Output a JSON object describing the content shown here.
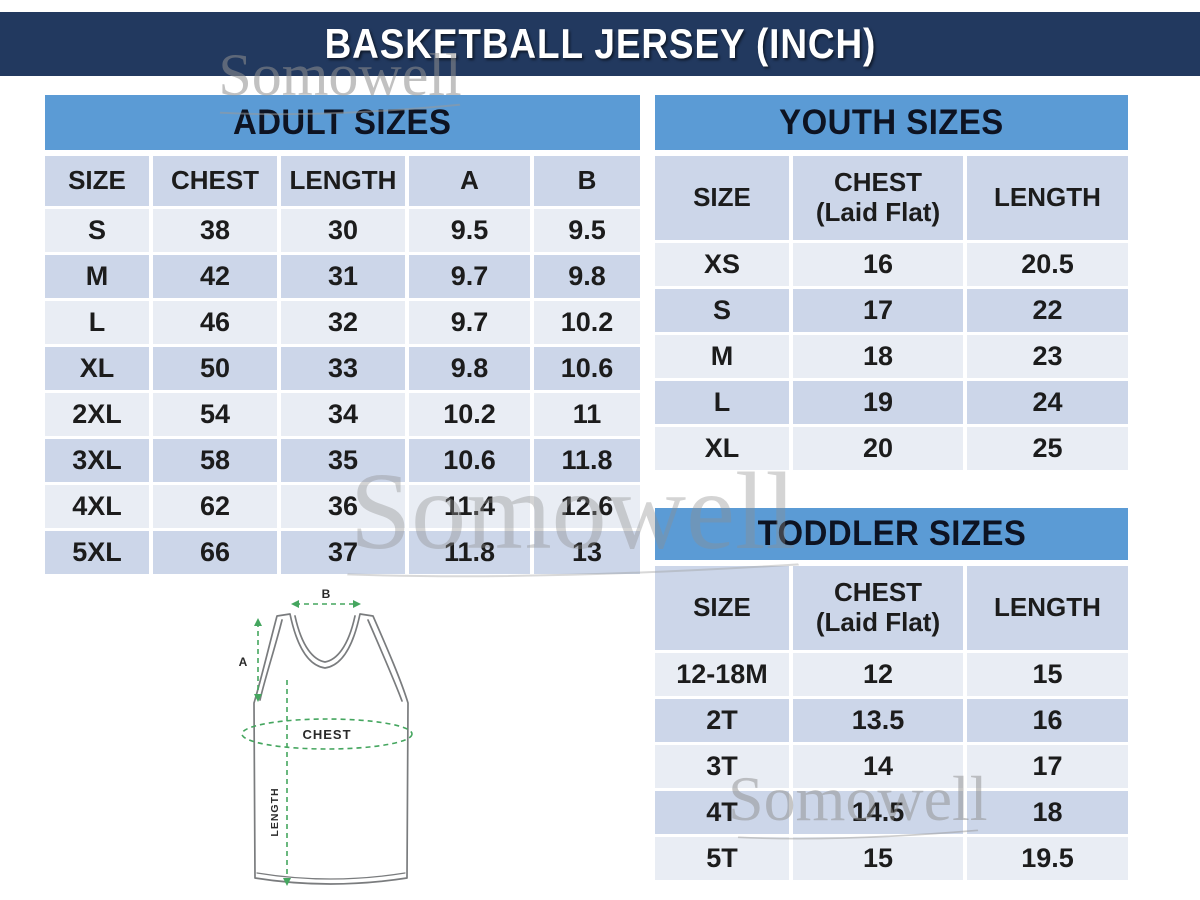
{
  "title": "BASKETBALL JERSEY (INCH)",
  "watermark": {
    "text": "Somowell"
  },
  "colors": {
    "navy": "#22395f",
    "header_blue": "#5b9bd5",
    "row_dark": "#ccd6e9",
    "row_light": "#e9edf4",
    "text": "#1c1c1c",
    "diagram_green": "#45a65f",
    "diagram_outline": "#7a7c7e"
  },
  "tables": {
    "adult": {
      "title": "ADULT SIZES",
      "columns": [
        {
          "label": "SIZE"
        },
        {
          "label": "CHEST"
        },
        {
          "label": "LENGTH"
        },
        {
          "label": "A"
        },
        {
          "label": "B"
        }
      ],
      "rows": [
        [
          "S",
          "38",
          "30",
          "9.5",
          "9.5"
        ],
        [
          "M",
          "42",
          "31",
          "9.7",
          "9.8"
        ],
        [
          "L",
          "46",
          "32",
          "9.7",
          "10.2"
        ],
        [
          "XL",
          "50",
          "33",
          "9.8",
          "10.6"
        ],
        [
          "2XL",
          "54",
          "34",
          "10.2",
          "11"
        ],
        [
          "3XL",
          "58",
          "35",
          "10.6",
          "11.8"
        ],
        [
          "4XL",
          "62",
          "36",
          "11.4",
          "12.6"
        ],
        [
          "5XL",
          "66",
          "37",
          "11.8",
          "13"
        ]
      ]
    },
    "youth": {
      "title": "YOUTH SIZES",
      "columns": [
        {
          "label": "SIZE"
        },
        {
          "label": "CHEST",
          "sub": "(Laid Flat)"
        },
        {
          "label": "LENGTH"
        }
      ],
      "rows": [
        [
          "XS",
          "16",
          "20.5"
        ],
        [
          "S",
          "17",
          "22"
        ],
        [
          "M",
          "18",
          "23"
        ],
        [
          "L",
          "19",
          "24"
        ],
        [
          "XL",
          "20",
          "25"
        ]
      ]
    },
    "toddler": {
      "title": "TODDLER SIZES",
      "columns": [
        {
          "label": "SIZE"
        },
        {
          "label": "CHEST",
          "sub": "(Laid Flat)"
        },
        {
          "label": "LENGTH"
        }
      ],
      "rows": [
        [
          "12-18M",
          "12",
          "15"
        ],
        [
          "2T",
          "13.5",
          "16"
        ],
        [
          "3T",
          "14",
          "17"
        ],
        [
          "4T",
          "14.5",
          "18"
        ],
        [
          "5T",
          "15",
          "19.5"
        ]
      ]
    }
  },
  "diagram": {
    "a_label": "A",
    "b_label": "B",
    "chest_label": "CHEST",
    "length_label": "LENGTH"
  }
}
